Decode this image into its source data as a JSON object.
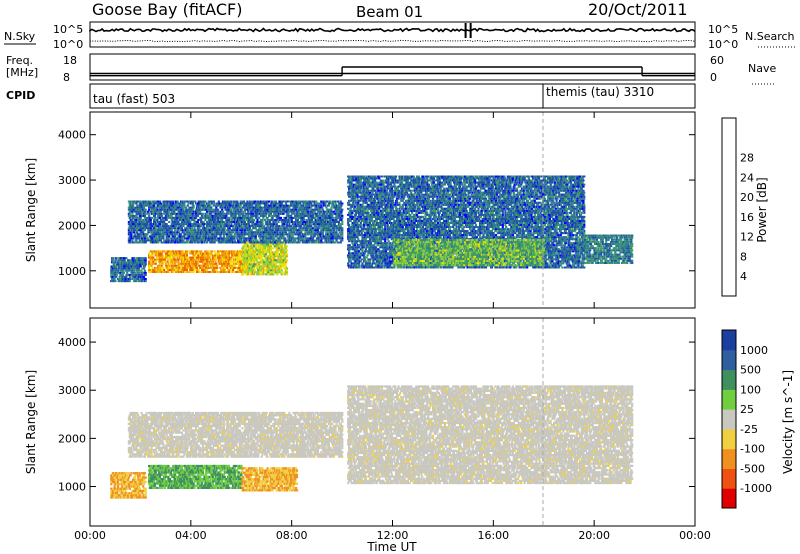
{
  "header": {
    "station": "Goose Bay (fitACF)",
    "beam": "Beam 01",
    "date": "20/Oct/2011"
  },
  "noise_panel": {
    "left_label": "N.Sky",
    "right_label": "N.Search",
    "left_ticks": [
      "10^5",
      "10^0"
    ],
    "right_ticks": [
      "10^5",
      "10^0"
    ]
  },
  "freq_panel": {
    "left_label_1": "Freq.",
    "left_label_2": "[MHz]",
    "left_ticks": [
      "18",
      "8"
    ],
    "right_label": "Nave",
    "right_ticks": [
      "60",
      "0"
    ],
    "freq_mhz": 10.5,
    "nave_segments": [
      {
        "start": "00:00",
        "end": "10:00",
        "value": 10
      },
      {
        "start": "10:00",
        "end": "21:54",
        "value": 30
      },
      {
        "start": "21:54",
        "end": "24:00",
        "value": 10
      }
    ]
  },
  "cpid_panel": {
    "label": "CPID",
    "modes": [
      {
        "name": "tau (fast) 503",
        "start_hour": 0
      },
      {
        "name": "themis (tau) 3310",
        "start_hour": 18
      }
    ]
  },
  "axes": {
    "xlabel": "Time UT",
    "xticks": [
      "00:00",
      "04:00",
      "08:00",
      "12:00",
      "16:00",
      "20:00",
      "00:00"
    ],
    "ylabel": "Slant Range [km]",
    "yticks": [
      "1000",
      "2000",
      "3000",
      "4000"
    ]
  },
  "power_colorbar": {
    "label": "Power [dB]",
    "ticks": [
      "4",
      "8",
      "12",
      "16",
      "20",
      "24",
      "28"
    ],
    "colors": [
      "#0000ff",
      "#1f4fa8",
      "#2e7f8f",
      "#3f9f5f",
      "#8fcf3f",
      "#f0e000",
      "#f0a000",
      "#f06000",
      "#e00000"
    ]
  },
  "velocity_colorbar": {
    "label": "Velocity [m s^-1]",
    "ticks": [
      "1000",
      "500",
      "100",
      "25",
      "-25",
      "-100",
      "-500",
      "-1000"
    ],
    "colors": [
      "#1a3f9f",
      "#2f5f9f",
      "#3f8f5f",
      "#6fcf3f",
      "#c8c8c0",
      "#f0d040",
      "#f09020",
      "#f05010",
      "#e00000"
    ]
  },
  "chart_data": [
    {
      "type": "heatmap",
      "name": "power",
      "x_range_hours": [
        0,
        24
      ],
      "y_range_km": [
        180,
        4500
      ],
      "regions": [
        {
          "t0": 0.8,
          "t1": 2.2,
          "r0": 750,
          "r1": 1300,
          "value_db": 8
        },
        {
          "t0": 2.3,
          "t1": 6.5,
          "r0": 950,
          "r1": 1450,
          "value_db": 26
        },
        {
          "t0": 6.0,
          "t1": 7.8,
          "r0": 900,
          "r1": 1650,
          "value_db": 20
        },
        {
          "t0": 1.5,
          "t1": 10.0,
          "r0": 1600,
          "r1": 2550,
          "value_db": 8
        },
        {
          "t0": 10.2,
          "t1": 19.6,
          "r0": 1050,
          "r1": 3100,
          "value_db": 8
        },
        {
          "t0": 12.0,
          "t1": 18.0,
          "r0": 1100,
          "r1": 1700,
          "value_db": 16
        },
        {
          "t0": 19.5,
          "t1": 21.5,
          "r0": 1150,
          "r1": 1800,
          "value_db": 10
        }
      ]
    },
    {
      "type": "heatmap",
      "name": "velocity",
      "x_range_hours": [
        0,
        24
      ],
      "y_range_km": [
        180,
        4500
      ],
      "regions": [
        {
          "t0": 0.8,
          "t1": 2.2,
          "r0": 750,
          "r1": 1300,
          "value_ms": -100
        },
        {
          "t0": 2.3,
          "t1": 6.0,
          "r0": 950,
          "r1": 1450,
          "value_ms": 100
        },
        {
          "t0": 6.0,
          "t1": 8.2,
          "r0": 900,
          "r1": 1400,
          "value_ms": -100
        },
        {
          "t0": 1.5,
          "t1": 10.0,
          "r0": 1600,
          "r1": 2550,
          "value_ms": 0
        },
        {
          "t0": 10.2,
          "t1": 21.5,
          "r0": 1050,
          "r1": 3100,
          "value_ms": 0
        }
      ]
    }
  ]
}
